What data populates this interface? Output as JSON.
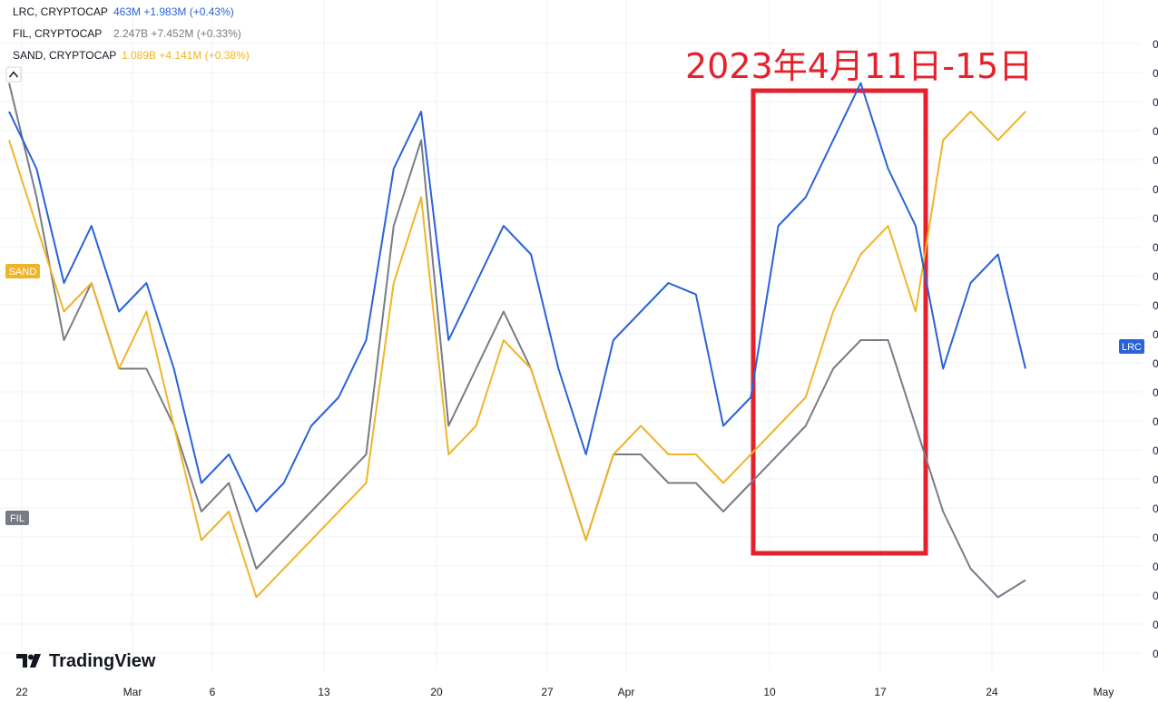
{
  "legend": [
    {
      "label": "LRC, CRYPTOCAP",
      "value": "463M",
      "change": "+1.983M (+0.43%)"
    },
    {
      "label": "FIL, CRYPTOCAP",
      "value": "2.247B",
      "change": "+7.452M (+0.33%)"
    },
    {
      "label": "SAND, CRYPTOCAP",
      "value": "1.089B",
      "change": "+4.141M (+0.38%)"
    }
  ],
  "annotation": {
    "text": "2023年4月11日-15日",
    "color": "#e5212b"
  },
  "branding": {
    "name": "TradingView"
  },
  "colors": {
    "LRC": "#2962d9",
    "FIL": "#787b86",
    "SAND": "#f0b429",
    "grid": "#eef0f4"
  },
  "chart_data": {
    "type": "line",
    "x_tick_labels": [
      "22",
      "Mar",
      "6",
      "13",
      "20",
      "27",
      "Apr",
      "10",
      "17",
      "24",
      "May"
    ],
    "price_scale_tick_label": "0",
    "grid": true,
    "legend_position": "top-left",
    "value_scale": "each series on its own scale, no values printed",
    "highlight_range": {
      "from": "2023-04-11",
      "to": "2023-04-15"
    },
    "series": [
      {
        "name": "LRC",
        "last_label": "LRC",
        "values": [
          0.9,
          0.8,
          0.6,
          0.7,
          0.55,
          0.6,
          0.45,
          0.25,
          0.3,
          0.2,
          0.25,
          0.35,
          0.4,
          0.5,
          0.8,
          0.9,
          0.5,
          0.6,
          0.7,
          0.65,
          0.45,
          0.3,
          0.5,
          0.55,
          0.6,
          0.58,
          0.35,
          0.4,
          0.7,
          0.75,
          0.85,
          0.95,
          0.8,
          0.7,
          0.45,
          0.6,
          0.65,
          0.45
        ]
      },
      {
        "name": "FIL",
        "last_label": "FIL",
        "values": [
          0.95,
          0.75,
          0.5,
          0.6,
          0.45,
          0.45,
          0.35,
          0.2,
          0.25,
          0.1,
          0.15,
          0.2,
          0.25,
          0.3,
          0.7,
          0.85,
          0.35,
          0.45,
          0.55,
          0.45,
          0.3,
          0.15,
          0.3,
          0.3,
          0.25,
          0.25,
          0.2,
          0.25,
          0.3,
          0.35,
          0.45,
          0.5,
          0.5,
          0.35,
          0.2,
          0.1,
          0.05,
          0.08
        ]
      },
      {
        "name": "SAND",
        "last_label": "SAND",
        "values": [
          0.85,
          0.7,
          0.55,
          0.6,
          0.45,
          0.55,
          0.35,
          0.15,
          0.2,
          0.05,
          0.1,
          0.15,
          0.2,
          0.25,
          0.6,
          0.75,
          0.3,
          0.35,
          0.5,
          0.45,
          0.3,
          0.15,
          0.3,
          0.35,
          0.3,
          0.3,
          0.25,
          0.3,
          0.35,
          0.4,
          0.55,
          0.65,
          0.7,
          0.55,
          0.85,
          0.9,
          0.85,
          0.9
        ]
      }
    ]
  }
}
